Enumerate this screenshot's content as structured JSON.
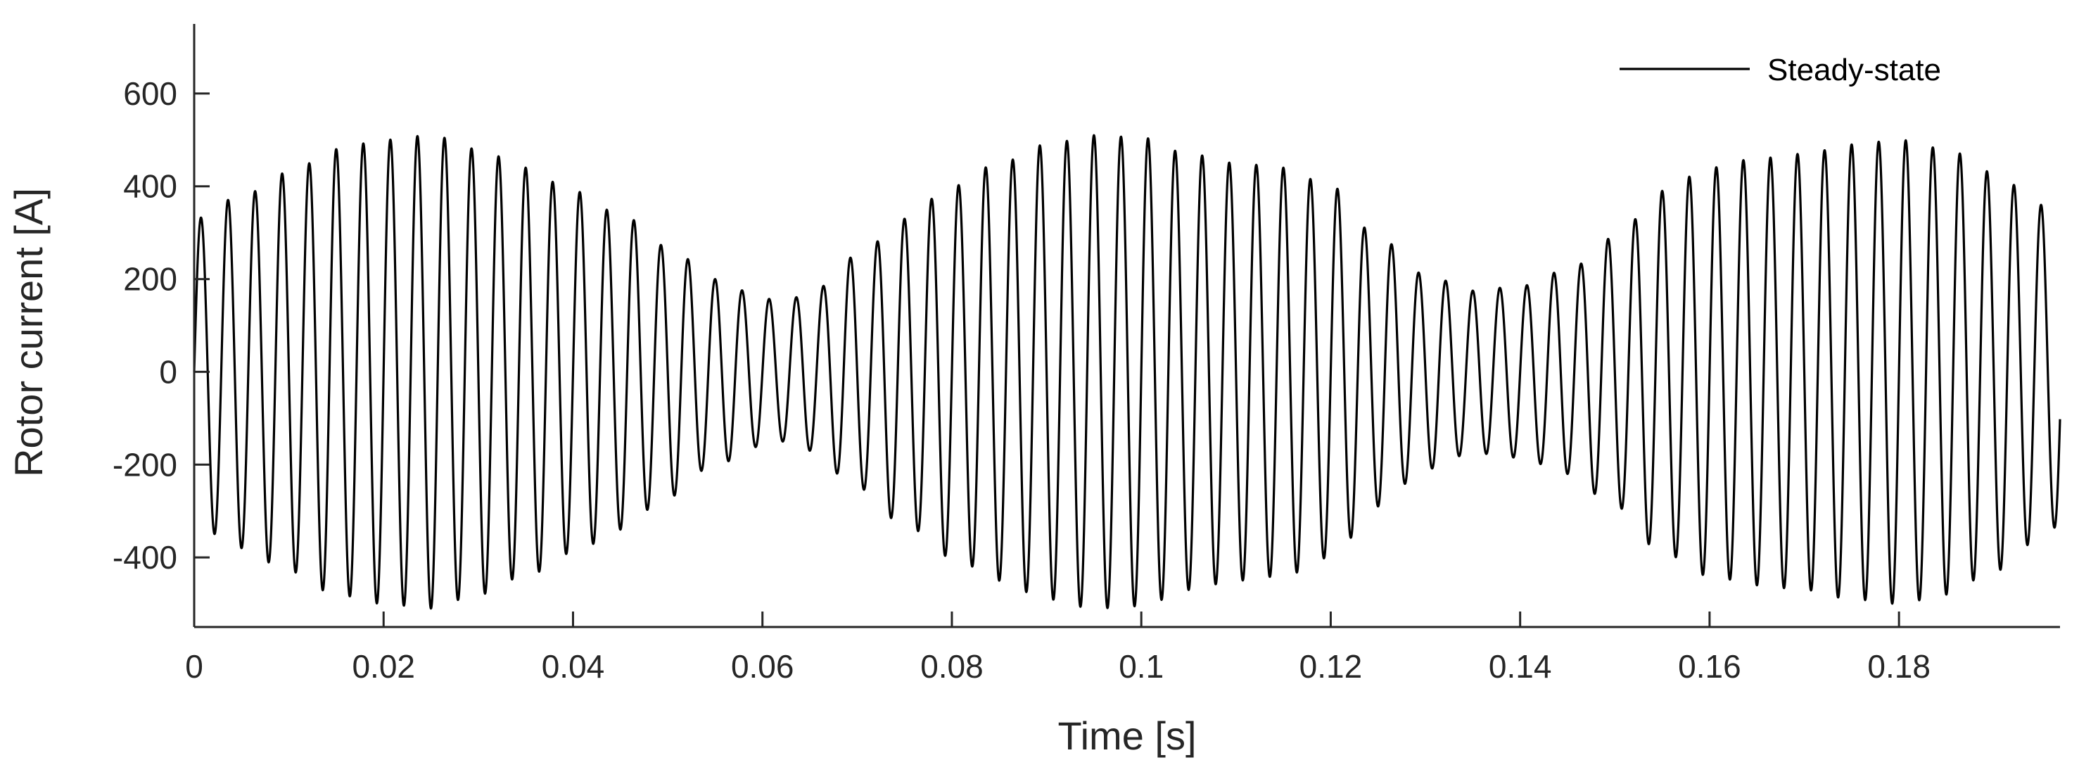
{
  "chart_data": {
    "type": "line",
    "xlabel": "Time [s]",
    "ylabel": "Rotor current [A]",
    "xlim": [
      0,
      0.197
    ],
    "ylim": [
      -550,
      750
    ],
    "x_ticks": [
      0,
      0.02,
      0.04,
      0.06,
      0.08,
      0.1,
      0.12,
      0.14,
      0.16,
      0.18
    ],
    "x_tick_labels": [
      "0",
      "0.02",
      "0.04",
      "0.06",
      "0.08",
      "0.1",
      "0.12",
      "0.14",
      "0.16",
      "0.18"
    ],
    "y_ticks": [
      -400,
      -200,
      0,
      200,
      400,
      600
    ],
    "y_tick_labels": [
      "-400",
      "-200",
      "0",
      "200",
      "400",
      "600"
    ],
    "grid": false,
    "legend": {
      "position": "top-right",
      "entries": [
        "Steady-state"
      ]
    },
    "series": [
      {
        "name": "Steady-state",
        "color": "#000000",
        "carrier_frequency_hz": 350,
        "envelope_points": [
          [
            0.0,
            330
          ],
          [
            0.005,
            380
          ],
          [
            0.01,
            430
          ],
          [
            0.015,
            480
          ],
          [
            0.02,
            500
          ],
          [
            0.025,
            510
          ],
          [
            0.03,
            480
          ],
          [
            0.035,
            440
          ],
          [
            0.04,
            390
          ],
          [
            0.045,
            340
          ],
          [
            0.05,
            270
          ],
          [
            0.055,
            200
          ],
          [
            0.06,
            160
          ],
          [
            0.062,
            150
          ],
          [
            0.065,
            170
          ],
          [
            0.07,
            250
          ],
          [
            0.075,
            330
          ],
          [
            0.08,
            400
          ],
          [
            0.085,
            450
          ],
          [
            0.09,
            490
          ],
          [
            0.095,
            510
          ],
          [
            0.1,
            505
          ],
          [
            0.105,
            470
          ],
          [
            0.11,
            450
          ],
          [
            0.115,
            440
          ],
          [
            0.12,
            400
          ],
          [
            0.125,
            290
          ],
          [
            0.13,
            210
          ],
          [
            0.135,
            175
          ],
          [
            0.14,
            185
          ],
          [
            0.145,
            220
          ],
          [
            0.15,
            290
          ],
          [
            0.155,
            390
          ],
          [
            0.16,
            440
          ],
          [
            0.165,
            460
          ],
          [
            0.17,
            470
          ],
          [
            0.175,
            490
          ],
          [
            0.18,
            500
          ],
          [
            0.185,
            480
          ],
          [
            0.19,
            430
          ],
          [
            0.195,
            360
          ],
          [
            0.197,
            330
          ]
        ]
      }
    ]
  }
}
